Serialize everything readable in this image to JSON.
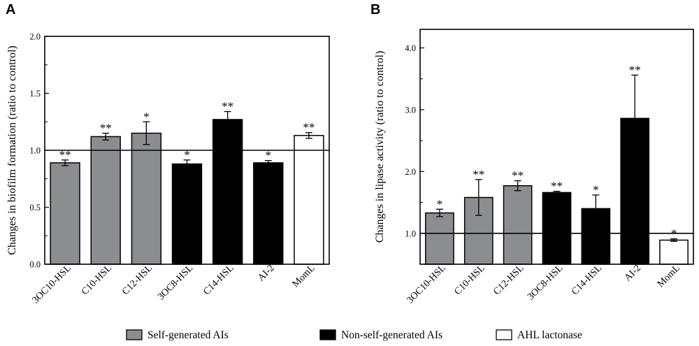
{
  "chart_data": [
    {
      "panel": "A",
      "type": "bar",
      "ylabel": "Changes in biofilm formation (ratio to control)",
      "xlabel": "",
      "ylim": [
        0,
        2.0
      ],
      "yticks": [
        "0.0",
        "0.5",
        "1.0",
        "1.5",
        "2.0"
      ],
      "yticks_values": [
        0,
        0.5,
        1.0,
        1.5,
        2.0
      ],
      "reference_line": 1.0,
      "categories": [
        "3OC10-HSL",
        "C10-HSL",
        "C12-HSL",
        "3OC8-HSL",
        "C14-HSL",
        "AI-2",
        "MomL"
      ],
      "values": [
        0.89,
        1.12,
        1.15,
        0.88,
        1.27,
        0.89,
        1.13
      ],
      "errors": [
        0.025,
        0.03,
        0.1,
        0.035,
        0.07,
        0.02,
        0.025
      ],
      "groups": [
        "self",
        "self",
        "self",
        "nonself",
        "nonself",
        "nonself",
        "lactonase"
      ],
      "significance": [
        "**",
        "**",
        "*",
        "*",
        "**",
        "*",
        "**"
      ]
    },
    {
      "panel": "B",
      "type": "bar",
      "ylabel": "Changes in lipase activity (ratio to control)",
      "xlabel": "",
      "ylim": [
        0.5,
        4.3
      ],
      "yticks": [
        "1.0",
        "2.0",
        "3.0",
        "4.0"
      ],
      "yticks_values": [
        1.0,
        2.0,
        3.0,
        4.0
      ],
      "reference_line": 1.0,
      "categories": [
        "3OC10-HSL",
        "C10-HSL",
        "C12-HSL",
        "3OC8-HSL",
        "C14-HSL",
        "AI-2",
        "MomL"
      ],
      "values": [
        1.33,
        1.58,
        1.77,
        1.66,
        1.4,
        2.86,
        0.89
      ],
      "errors": [
        0.06,
        0.29,
        0.08,
        0.02,
        0.22,
        0.7,
        0.02
      ],
      "groups": [
        "self",
        "self",
        "self",
        "nonself",
        "nonself",
        "nonself",
        "lactonase"
      ],
      "significance": [
        "*",
        "**",
        "**",
        "**",
        "*",
        "**",
        "*"
      ]
    }
  ],
  "legend": [
    {
      "key": "self",
      "label": "Self-generated AIs",
      "color": "#8c8d91"
    },
    {
      "key": "nonself",
      "label": "Non-self-generated AIs",
      "color": "#000000"
    },
    {
      "key": "lactonase",
      "label": "AHL lactonase",
      "color": "#ffffff"
    }
  ]
}
